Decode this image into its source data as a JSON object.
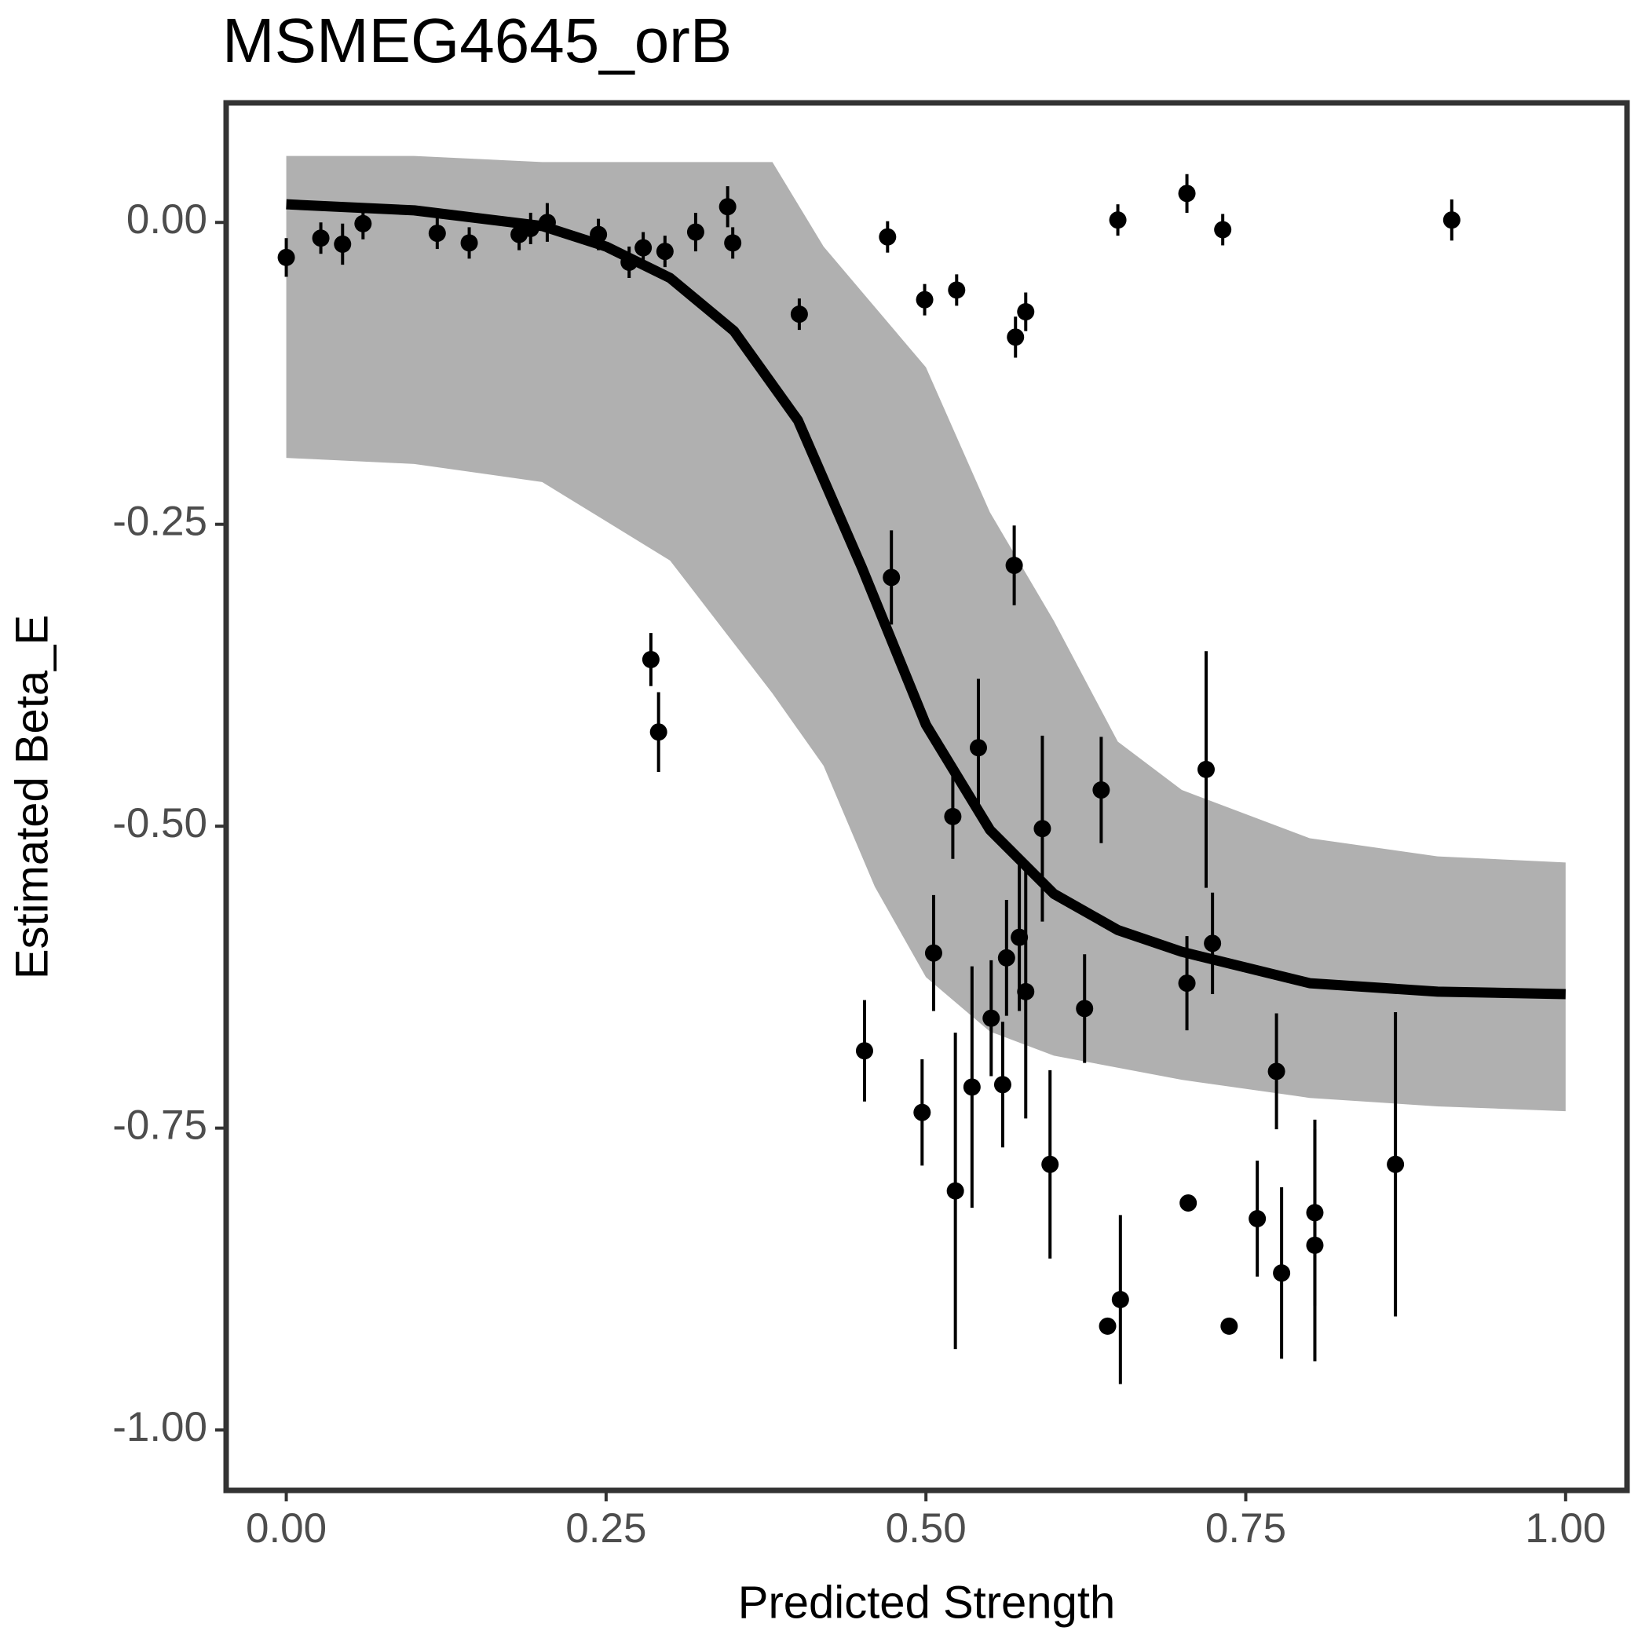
{
  "chart_data": {
    "type": "scatter",
    "title": "MSMEG4645_orB",
    "xlabel": "Predicted Strength",
    "ylabel": "Estimated Beta_E",
    "xlim": [
      -0.047,
      1.048
    ],
    "ylim": [
      -1.05,
      0.099
    ],
    "xticks": [
      {
        "value": 0,
        "label": "0.00"
      },
      {
        "value": 0.25,
        "label": "0.25"
      },
      {
        "value": 0.5,
        "label": "0.50"
      },
      {
        "value": 0.75,
        "label": "0.75"
      },
      {
        "value": 1,
        "label": "1.00"
      }
    ],
    "yticks": [
      {
        "value": 0,
        "label": "0.00"
      },
      {
        "value": -0.25,
        "label": "-0.25"
      },
      {
        "value": -0.5,
        "label": "-0.50"
      },
      {
        "value": -0.75,
        "label": "-0.75"
      },
      {
        "value": -1,
        "label": "-1.00"
      }
    ],
    "band": {
      "color": "#b0b0b0",
      "x": [
        0,
        0.1,
        0.2,
        0.3,
        0.38,
        0.42,
        0.46,
        0.5,
        0.55,
        0.6,
        0.65,
        0.7,
        0.8,
        0.9,
        1
      ],
      "upper": [
        0.055,
        0.055,
        0.05,
        0.05,
        0.05,
        -0.02,
        -0.07,
        -0.12,
        -0.24,
        -0.33,
        -0.43,
        -0.47,
        -0.51,
        -0.525,
        -0.53
      ],
      "lower": [
        -0.195,
        -0.2,
        -0.215,
        -0.28,
        -0.39,
        -0.45,
        -0.55,
        -0.625,
        -0.67,
        -0.69,
        -0.7,
        -0.71,
        -0.725,
        -0.732,
        -0.736
      ]
    },
    "fit": {
      "color": "#000000",
      "x": [
        0,
        0.1,
        0.2,
        0.25,
        0.3,
        0.35,
        0.4,
        0.45,
        0.5,
        0.55,
        0.6,
        0.65,
        0.7,
        0.8,
        0.9,
        1
      ],
      "values": [
        0.015,
        0.01,
        -0.003,
        -0.02,
        -0.046,
        -0.09,
        -0.164,
        -0.286,
        -0.416,
        -0.503,
        -0.556,
        -0.586,
        -0.604,
        -0.63,
        -0.637,
        -0.639
      ]
    },
    "points": {
      "color": "#000000",
      "x": [
        0.0,
        0.027,
        0.044,
        0.06,
        0.118,
        0.143,
        0.182,
        0.191,
        0.204,
        0.244,
        0.268,
        0.279,
        0.296,
        0.285,
        0.291,
        0.32,
        0.345,
        0.349,
        0.401,
        0.452,
        0.47,
        0.473,
        0.497,
        0.499,
        0.506,
        0.521,
        0.523,
        0.524,
        0.536,
        0.541,
        0.551,
        0.56,
        0.563,
        0.569,
        0.57,
        0.573,
        0.578,
        0.578,
        0.591,
        0.597,
        0.624,
        0.637,
        0.642,
        0.65,
        0.652,
        0.704,
        0.704,
        0.705,
        0.719,
        0.724,
        0.732,
        0.737,
        0.759,
        0.774,
        0.778,
        0.804,
        0.804,
        0.867,
        0.911
      ],
      "values": [
        -0.029,
        -0.013,
        -0.018,
        -0.001,
        -0.009,
        -0.017,
        -0.01,
        -0.005,
        0.0,
        -0.01,
        -0.033,
        -0.021,
        -0.024,
        -0.362,
        -0.422,
        -0.008,
        0.013,
        -0.017,
        -0.076,
        -0.686,
        -0.012,
        -0.294,
        -0.737,
        -0.064,
        -0.605,
        -0.492,
        -0.802,
        -0.056,
        -0.716,
        -0.435,
        -0.659,
        -0.714,
        -0.609,
        -0.284,
        -0.095,
        -0.592,
        -0.074,
        -0.637,
        -0.502,
        -0.78,
        -0.651,
        -0.47,
        -0.914,
        0.002,
        -0.892,
        -0.63,
        0.024,
        -0.812,
        -0.453,
        -0.597,
        -0.006,
        -0.914,
        -0.825,
        -0.703,
        -0.87,
        -0.82,
        -0.847,
        -0.78,
        0.002
      ],
      "errors": [
        0.016,
        0.013,
        0.017,
        0.013,
        0.013,
        0.013,
        0.013,
        0.013,
        0.016,
        0.013,
        0.013,
        0.013,
        0.013,
        0.022,
        0.033,
        0.016,
        0.017,
        0.013,
        0.013,
        0.042,
        0.013,
        0.039,
        0.044,
        0.013,
        0.048,
        0.035,
        0.131,
        0.013,
        0.1,
        0.057,
        0.048,
        0.052,
        0.048,
        0.033,
        0.017,
        0.061,
        0.016,
        0.105,
        0.077,
        0.078,
        0.045,
        0.044,
        0,
        0.013,
        0.07,
        0.039,
        0.016,
        0,
        0.098,
        0.042,
        0.013,
        0,
        0.048,
        0.048,
        0.071,
        0.077,
        0.096,
        0.126,
        0.017
      ]
    }
  }
}
